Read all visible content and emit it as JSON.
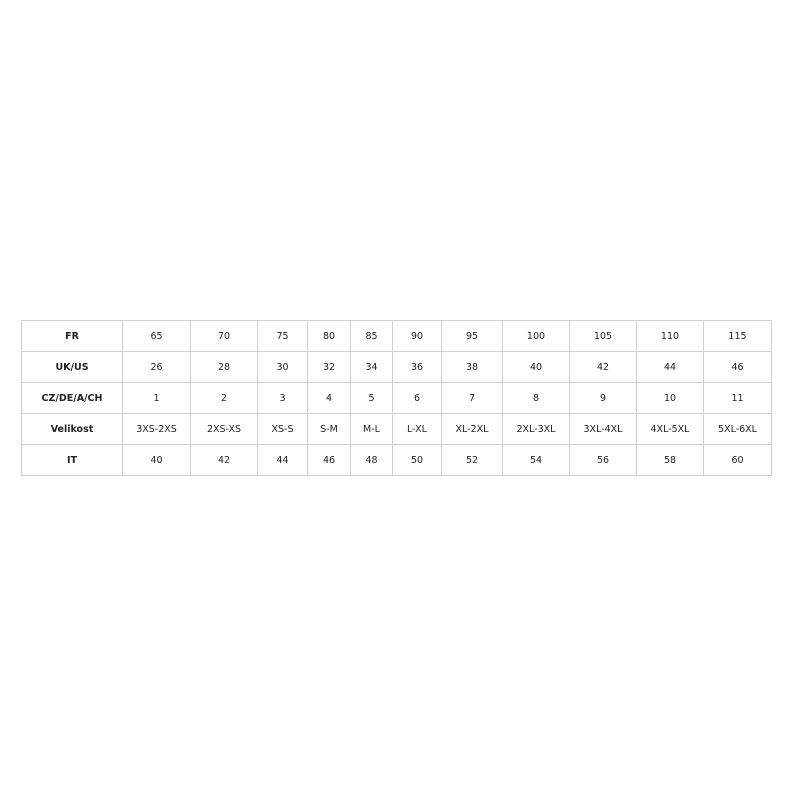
{
  "size_table": {
    "rows": [
      {
        "label": "FR",
        "values": [
          "65",
          "70",
          "75",
          "80",
          "85",
          "90",
          "95",
          "100",
          "105",
          "110",
          "115"
        ]
      },
      {
        "label": "UK/US",
        "values": [
          "26",
          "28",
          "30",
          "32",
          "34",
          "36",
          "38",
          "40",
          "42",
          "44",
          "46"
        ]
      },
      {
        "label": "CZ/DE/A/CH",
        "values": [
          "1",
          "2",
          "3",
          "4",
          "5",
          "6",
          "7",
          "8",
          "9",
          "10",
          "11"
        ]
      },
      {
        "label": "Velikost",
        "values": [
          "3XS-2XS",
          "2XS-XS",
          "XS-S",
          "S-M",
          "M-L",
          "L-XL",
          "XL-2XL",
          "2XL-3XL",
          "3XL-4XL",
          "4XL-5XL",
          "5XL-6XL"
        ]
      },
      {
        "label": "IT",
        "values": [
          "40",
          "42",
          "44",
          "46",
          "48",
          "50",
          "52",
          "54",
          "56",
          "58",
          "60"
        ]
      }
    ]
  }
}
